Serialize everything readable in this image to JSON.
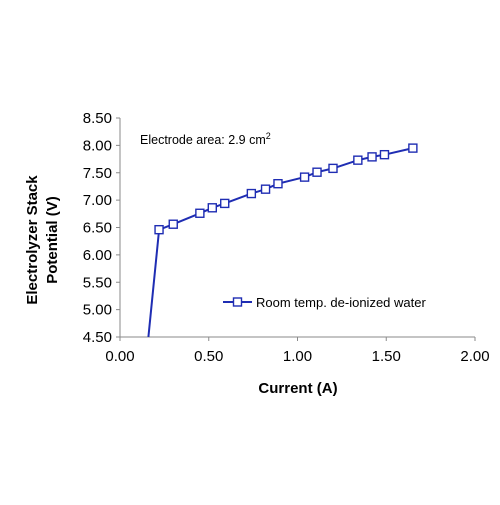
{
  "colors": {
    "series": "#1f2db3",
    "axis": "#8a8a8a",
    "background": "#ffffff"
  },
  "chart_data": {
    "type": "line",
    "title": "",
    "xlabel": "Current (A)",
    "ylabel_line1": "Electrolyzer Stack",
    "ylabel_line2": "Potential (V)",
    "xlim": [
      0,
      2
    ],
    "ylim": [
      4.5,
      8.5
    ],
    "x_ticks": [
      "0.00",
      "0.50",
      "1.00",
      "1.50",
      "2.00"
    ],
    "y_ticks": [
      "4.50",
      "5.00",
      "5.50",
      "6.00",
      "6.50",
      "7.00",
      "7.50",
      "8.00",
      "8.50"
    ],
    "grid": false,
    "annotation": {
      "text": "Electrode area: 2.9 cm",
      "superscript": "2"
    },
    "legend": {
      "placement": "lower-right",
      "marker": "square-open"
    },
    "series": [
      {
        "name": "Room temp. de-ionized water",
        "x": [
          0.16,
          0.22,
          0.3,
          0.45,
          0.52,
          0.59,
          0.74,
          0.82,
          0.89,
          1.04,
          1.11,
          1.2,
          1.34,
          1.42,
          1.49,
          1.65
        ],
        "y": [
          4.5,
          6.46,
          6.56,
          6.76,
          6.86,
          6.94,
          7.12,
          7.2,
          7.3,
          7.42,
          7.51,
          7.58,
          7.73,
          7.79,
          7.83,
          7.95
        ],
        "markers": [
          false,
          true,
          true,
          true,
          true,
          true,
          true,
          true,
          true,
          true,
          true,
          true,
          true,
          true,
          true,
          true
        ]
      }
    ]
  }
}
